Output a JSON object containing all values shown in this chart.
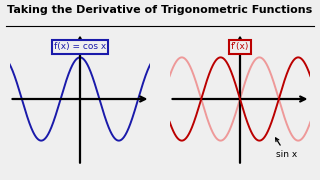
{
  "title": "Taking the Derivative of Trigonometric Functions",
  "title_fontsize": 8.0,
  "bg_color": "#efefef",
  "left_label": "f(x) = cos x",
  "right_label": "f’(x)",
  "annotation": "sin x",
  "blue_color": "#1a1aaa",
  "red_dark": "#bb0000",
  "red_light": "#ee9999",
  "axis_color": "#000000",
  "label_fontsize": 6.5,
  "annot_fontsize": 6.5,
  "x_range": [
    -3.8,
    3.8
  ],
  "freq": 1.5
}
